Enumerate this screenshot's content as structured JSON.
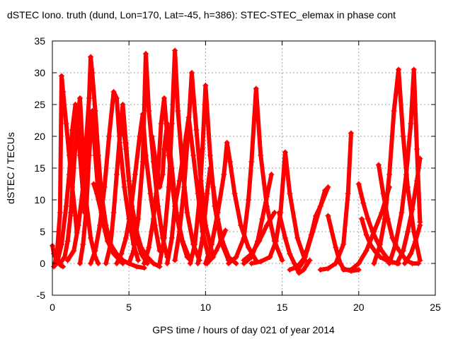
{
  "chart_data": {
    "type": "scatter",
    "title": "dSTEC Iono. truth (dund, Lon=170, Lat=-45, h=386): STEC-STEC_elemax in phase cont",
    "xlabel": "GPS time / hours of day 021 of year 2014",
    "ylabel": "dSTEC  / TECUs",
    "xlim": [
      0,
      25
    ],
    "ylim": [
      -5,
      35
    ],
    "xticks": [
      0,
      5,
      10,
      15,
      20,
      25
    ],
    "yticks": [
      -5,
      0,
      5,
      10,
      15,
      20,
      25,
      30,
      35
    ],
    "grid": true,
    "marker": "+",
    "color": "#ff0000",
    "series": [
      {
        "x": [
          0.0,
          0.1,
          0.25,
          0.4,
          0.55,
          0.7
        ],
        "y": [
          2.8,
          1.5,
          0.6,
          0.1,
          -0.3,
          -0.5
        ]
      },
      {
        "x": [
          0.1,
          0.3,
          0.5,
          0.6,
          0.7,
          0.9,
          1.1,
          1.3,
          1.5,
          1.6
        ],
        "y": [
          -0.5,
          1.5,
          8.0,
          29.5,
          27.0,
          22.0,
          17.0,
          12.0,
          7.5,
          4.8
        ]
      },
      {
        "x": [
          0.5,
          0.8,
          1.0,
          1.2,
          1.4,
          1.6,
          1.8,
          2.0,
          2.2,
          2.5,
          2.8,
          3.0
        ],
        "y": [
          0.0,
          1.0,
          3.5,
          8.0,
          15.0,
          22.0,
          26.0,
          17.0,
          10.0,
          4.0,
          1.0,
          0.0
        ]
      },
      {
        "x": [
          0.3,
          0.6,
          0.9,
          1.1,
          1.3,
          1.5,
          1.8,
          2.1
        ],
        "y": [
          0.0,
          3.0,
          9.0,
          14.0,
          21.0,
          25.0,
          17.0,
          8.0
        ]
      },
      {
        "x": [
          1.0,
          1.4,
          1.7,
          2.0,
          2.2,
          2.4,
          2.5,
          2.6,
          2.8,
          3.0,
          3.2,
          3.5,
          3.8,
          4.2,
          4.6
        ],
        "y": [
          0.5,
          2.0,
          6.0,
          12.0,
          19.0,
          26.0,
          32.5,
          30.0,
          24.0,
          17.0,
          11.0,
          6.0,
          3.0,
          1.0,
          0.0
        ]
      },
      {
        "x": [
          1.8,
          2.0,
          2.2,
          2.4,
          2.6,
          2.8,
          3.0,
          3.3,
          3.6,
          4.0,
          4.5,
          5.0
        ],
        "y": [
          0.0,
          3.0,
          8.0,
          17.0,
          24.0,
          17.0,
          11.0,
          6.5,
          3.5,
          1.5,
          0.5,
          0.0
        ]
      },
      {
        "x": [
          2.5,
          2.8,
          3.1,
          3.4,
          3.7,
          4.0,
          4.2,
          4.4,
          4.7,
          5.0,
          5.3,
          5.6
        ],
        "y": [
          0.0,
          2.0,
          6.0,
          12.0,
          20.0,
          27.0,
          26.0,
          19.0,
          12.0,
          7.0,
          3.0,
          0.5
        ]
      },
      {
        "x": [
          2.7,
          2.9,
          3.2,
          3.5,
          3.8,
          4.2,
          4.6,
          5.0,
          5.5,
          6.0
        ],
        "y": [
          12.5,
          11.0,
          8.0,
          5.0,
          3.0,
          1.5,
          0.5,
          0.0,
          -0.5,
          -0.7
        ]
      },
      {
        "x": [
          3.5,
          3.8,
          4.0,
          4.2,
          4.4,
          4.6,
          4.8,
          5.0,
          5.2,
          5.5,
          5.8,
          6.2
        ],
        "y": [
          0.0,
          3.0,
          8.0,
          14.0,
          20.0,
          25.0,
          19.0,
          13.0,
          8.0,
          4.0,
          1.5,
          0.0
        ]
      },
      {
        "x": [
          4.2,
          4.5,
          4.8,
          5.1,
          5.4,
          5.7,
          5.9,
          6.1,
          6.4,
          6.7,
          7.0
        ],
        "y": [
          0.0,
          1.5,
          4.0,
          8.0,
          14.0,
          20.0,
          23.5,
          17.0,
          11.0,
          6.0,
          2.0
        ]
      },
      {
        "x": [
          4.6,
          4.8,
          5.0,
          5.2,
          5.5,
          5.8,
          6.2,
          6.6,
          7.0
        ],
        "y": [
          22.0,
          18.0,
          13.0,
          9.0,
          5.0,
          2.5,
          1.0,
          0.0,
          -0.5
        ]
      },
      {
        "x": [
          5.0,
          5.3,
          5.6,
          5.9,
          6.1,
          6.3,
          6.6,
          6.9,
          7.2,
          7.5
        ],
        "y": [
          0.0,
          2.0,
          7.0,
          16.0,
          33.0,
          24.0,
          16.0,
          9.0,
          4.0,
          1.0
        ]
      },
      {
        "x": [
          6.0,
          6.3,
          6.6,
          6.9,
          7.1,
          7.3,
          7.6,
          8.0,
          8.4,
          8.8
        ],
        "y": [
          0.0,
          2.5,
          7.0,
          14.0,
          22.0,
          26.0,
          17.0,
          9.0,
          4.0,
          1.0
        ]
      },
      {
        "x": [
          6.5,
          6.8,
          7.0,
          7.2,
          7.3,
          7.5,
          7.8,
          8.1,
          8.5,
          9.0
        ],
        "y": [
          20.0,
          15.0,
          12.0,
          14.0,
          18.0,
          22.0,
          15.0,
          8.0,
          3.5,
          0.5
        ]
      },
      {
        "x": [
          7.0,
          7.3,
          7.6,
          7.8,
          8.0,
          8.2,
          8.5,
          8.8,
          9.2,
          9.6
        ],
        "y": [
          0.0,
          4.0,
          12.0,
          22.0,
          33.5,
          24.0,
          15.0,
          8.0,
          3.0,
          0.5
        ]
      },
      {
        "x": [
          7.5,
          7.8,
          8.0,
          8.3,
          8.6,
          8.9,
          9.2,
          9.5,
          9.8,
          10.2
        ],
        "y": [
          0.0,
          4.0,
          9.0,
          13.0,
          18.0,
          23.0,
          17.0,
          11.0,
          5.0,
          1.0
        ]
      },
      {
        "x": [
          8.0,
          8.3,
          8.6,
          8.9,
          9.1,
          9.4,
          9.7,
          10.0,
          10.5
        ],
        "y": [
          0.5,
          5.0,
          12.0,
          22.0,
          30.0,
          21.0,
          13.0,
          6.0,
          1.0
        ]
      },
      {
        "x": [
          9.0,
          9.3,
          9.6,
          9.8,
          10.0,
          10.3,
          10.6,
          11.0,
          11.5
        ],
        "y": [
          0.0,
          3.0,
          10.0,
          18.0,
          28.0,
          17.0,
          9.0,
          3.5,
          0.5
        ]
      },
      {
        "x": [
          9.5,
          9.8,
          10.1,
          10.3,
          10.5,
          10.8,
          11.1,
          11.5,
          12.0
        ],
        "y": [
          0.0,
          4.0,
          11.0,
          15.0,
          12.0,
          7.0,
          3.5,
          1.0,
          0.0
        ]
      },
      {
        "x": [
          10.0,
          10.4,
          10.8,
          11.2,
          11.4,
          11.6,
          11.9,
          12.3,
          12.8,
          13.3
        ],
        "y": [
          0.0,
          3.0,
          8.0,
          14.0,
          19.0,
          16.0,
          11.0,
          6.0,
          2.5,
          0.5
        ]
      },
      {
        "x": [
          11.3,
          11.0,
          10.7,
          10.4,
          10.1
        ],
        "y": [
          5.2,
          3.5,
          2.0,
          0.8,
          0.0
        ]
      },
      {
        "x": [
          11.5,
          12.0,
          12.5,
          12.8,
          13.0,
          13.3,
          13.6,
          14.0,
          14.5,
          15.0
        ],
        "y": [
          0.0,
          1.0,
          4.0,
          10.0,
          16.0,
          27.5,
          17.0,
          9.0,
          3.5,
          0.5
        ]
      },
      {
        "x": [
          12.5,
          13.0,
          13.4,
          13.7,
          14.0,
          14.3
        ],
        "y": [
          0.0,
          1.0,
          3.5,
          7.0,
          10.5,
          14.0
        ]
      },
      {
        "x": [
          13.0,
          13.6,
          14.2,
          14.6,
          14.9,
          15.2,
          15.5,
          16.0,
          16.5
        ],
        "y": [
          0.0,
          0.3,
          1.0,
          3.5,
          8.0,
          17.5,
          11.0,
          4.0,
          0.5
        ]
      },
      {
        "x": [
          14.5,
          14.0,
          13.5,
          13.0,
          12.5
        ],
        "y": [
          8.0,
          6.0,
          3.5,
          1.5,
          0.5
        ]
      },
      {
        "x": [
          14.8,
          15.2,
          15.5,
          15.8,
          16.1,
          16.4,
          16.8
        ],
        "y": [
          8.0,
          4.0,
          1.5,
          0.0,
          -1.5,
          -1.0,
          0.5
        ]
      },
      {
        "x": [
          15.5,
          16.0,
          16.5,
          17.0,
          17.5,
          18.0
        ],
        "y": [
          -1.0,
          -0.5,
          1.0,
          5.0,
          9.0,
          12.0
        ]
      },
      {
        "x": [
          16.0,
          16.3,
          16.6,
          16.9,
          17.2,
          17.5,
          17.8
        ],
        "y": [
          -1.0,
          0.0,
          2.0,
          4.5,
          7.5,
          9.0,
          11.5
        ]
      },
      {
        "x": [
          17.5,
          18.0,
          18.5,
          19.0,
          19.3,
          19.5
        ],
        "y": [
          -1.0,
          -0.8,
          0.0,
          3.0,
          11.0,
          20.5
        ]
      },
      {
        "x": [
          18.0,
          18.5,
          18.8,
          19.0,
          19.5,
          20.0
        ],
        "y": [
          7.5,
          2.5,
          0.0,
          -0.8,
          -1.2,
          -1.0
        ]
      },
      {
        "x": [
          19.0,
          19.5,
          20.0,
          20.5,
          21.0,
          21.5,
          22.0
        ],
        "y": [
          -1.0,
          -1.0,
          0.0,
          2.0,
          5.0,
          8.0,
          12.0
        ]
      },
      {
        "x": [
          20.0,
          20.3,
          20.6,
          20.9,
          21.2,
          21.5,
          21.8,
          22.2,
          22.6
        ],
        "y": [
          12.5,
          9.5,
          7.0,
          5.0,
          3.5,
          2.0,
          1.0,
          0.2,
          0.0
        ]
      },
      {
        "x": [
          20.2,
          20.5,
          20.8,
          21.1,
          21.4,
          21.8,
          22.2,
          22.6
        ],
        "y": [
          7.0,
          4.5,
          2.8,
          1.8,
          1.0,
          0.5,
          0.2,
          0.0
        ]
      },
      {
        "x": [
          21.0,
          21.4,
          21.7,
          22.0,
          22.3,
          22.6,
          22.9,
          23.2,
          23.6,
          24.0
        ],
        "y": [
          0.0,
          3.0,
          7.0,
          14.0,
          24.0,
          30.5,
          20.0,
          12.0,
          5.0,
          0.5
        ]
      },
      {
        "x": [
          21.3,
          21.6,
          21.9,
          22.2,
          22.5,
          22.8,
          23.1,
          23.5,
          23.9
        ],
        "y": [
          15.5,
          11.0,
          7.0,
          4.0,
          2.5,
          1.5,
          0.5,
          0.0,
          0.0
        ]
      },
      {
        "x": [
          22.0,
          22.4,
          22.8,
          23.1,
          23.4,
          23.6,
          23.8,
          24.0
        ],
        "y": [
          0.0,
          3.0,
          8.0,
          14.0,
          22.0,
          30.5,
          18.0,
          6.5
        ]
      },
      {
        "x": [
          22.5,
          22.9,
          23.2,
          23.5,
          23.8,
          24.0
        ],
        "y": [
          0.0,
          2.0,
          5.0,
          8.5,
          13.0,
          16.5
        ]
      },
      {
        "x": [
          23.0,
          23.4,
          23.7,
          24.0
        ],
        "y": [
          0.0,
          1.5,
          3.5,
          6.0
        ]
      }
    ]
  }
}
